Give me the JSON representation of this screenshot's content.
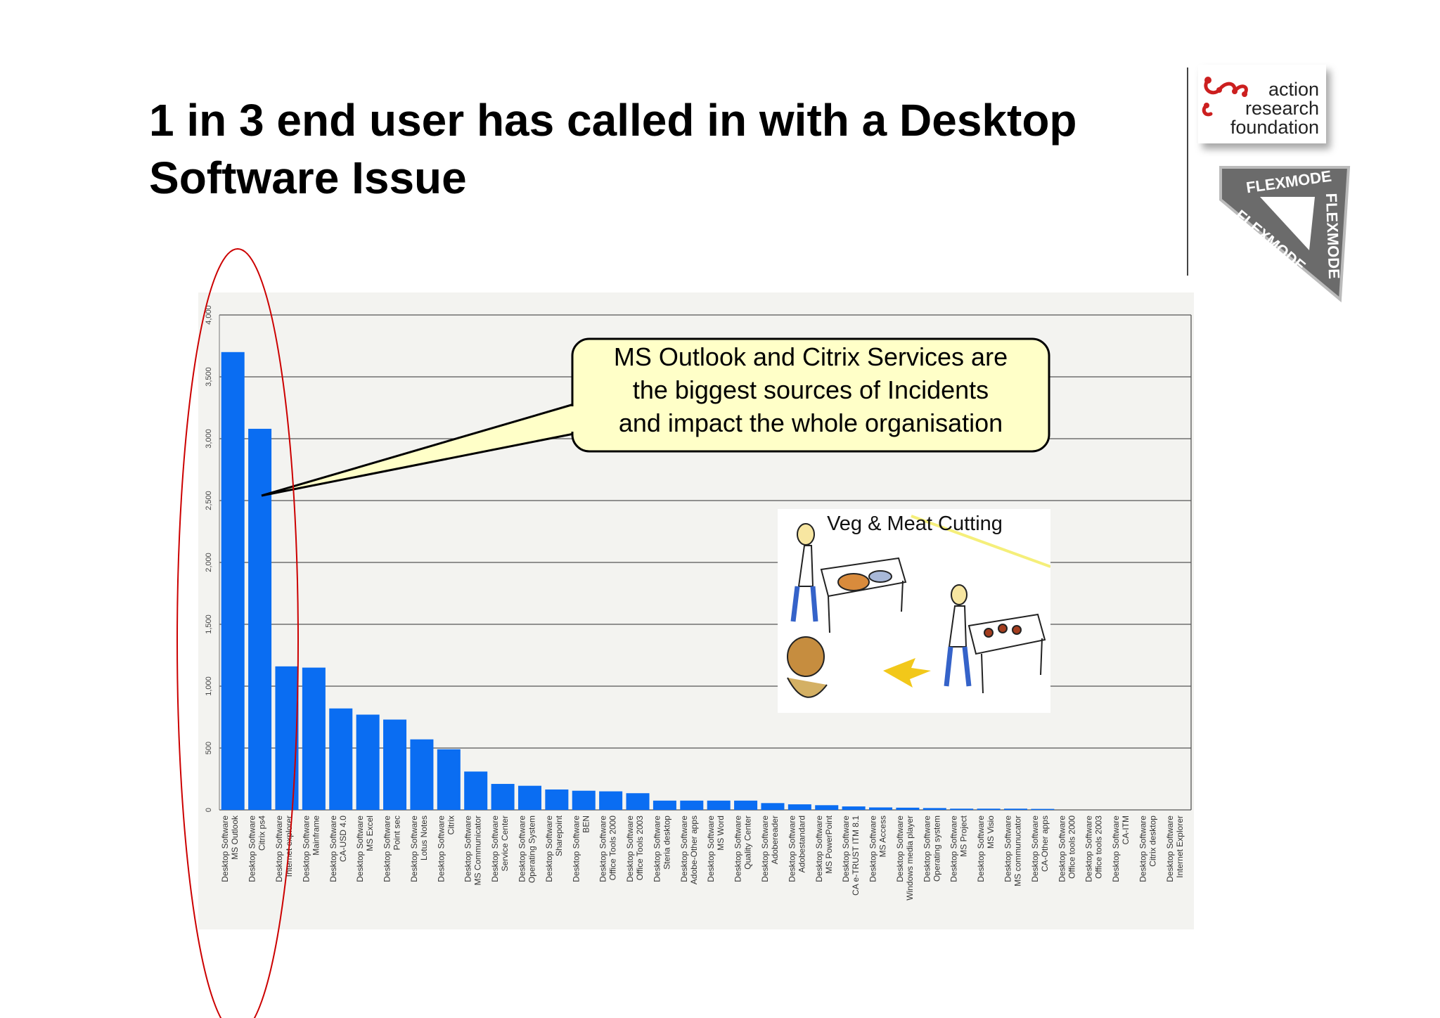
{
  "slide": {
    "title_lines": [
      "1 in 3 end user has called in with a Desktop",
      "Software Issue"
    ]
  },
  "logos": {
    "action_research": {
      "lines": [
        "action",
        "research",
        "foundation"
      ],
      "accent": "#cc1f1f"
    },
    "flexmode": {
      "text": "FLEXMODE"
    }
  },
  "callout": {
    "lines": [
      "MS Outlook and Citrix Services are",
      "the biggest sources of Incidents",
      "and impact the whole organisation"
    ],
    "fill": "#ffffc8"
  },
  "image": {
    "caption": "Veg & Meat Cutting"
  },
  "chart_data": {
    "type": "bar",
    "bar_color": "#0a6df2",
    "highlight_color": "#cc0000",
    "ylim": [
      0,
      4000
    ],
    "yticks": [
      0,
      500,
      1000,
      1500,
      2000,
      2500,
      3000,
      3500,
      4000
    ],
    "ytick_labels": [
      "0",
      "500",
      "1,000",
      "1,500",
      "2,000",
      "2,500",
      "3,000",
      "3,500",
      "4,000"
    ],
    "grid": true,
    "categories": [
      [
        "Desktop Software",
        "MS Outlook"
      ],
      [
        "Desktop Software",
        "Citrix ps4"
      ],
      [
        "Desktop Software",
        "Internet explorer"
      ],
      [
        "Desktop Software",
        "Mainframe"
      ],
      [
        "Desktop Software",
        "CA-USD 4.0"
      ],
      [
        "Desktop Software",
        "MS Excel"
      ],
      [
        "Desktop Software",
        "Point sec"
      ],
      [
        "Desktop Software",
        "Lotus Notes"
      ],
      [
        "Desktop Software",
        "Citrix"
      ],
      [
        "Desktop Software",
        "MS Communicator"
      ],
      [
        "Desktop Software",
        "Service Center"
      ],
      [
        "Desktop Software",
        "Operating System"
      ],
      [
        "Desktop Software",
        "Sharepoint"
      ],
      [
        "Desktop Software",
        "BEN"
      ],
      [
        "Desktop Software",
        "Office Tools 2000"
      ],
      [
        "Desktop Software",
        "Office Tools 2003"
      ],
      [
        "Desktop Software",
        "Steria desktop"
      ],
      [
        "Desktop Software",
        "Adobe-Other apps"
      ],
      [
        "Desktop Software",
        "MS Word"
      ],
      [
        "Desktop Software",
        "Quality Center"
      ],
      [
        "Desktop Software",
        "Adobereader"
      ],
      [
        "Desktop Software",
        "Adobestandard"
      ],
      [
        "Desktop Software",
        "MS PowerPoint"
      ],
      [
        "Desktop Software",
        "CA e-TRUST ITM 8.1"
      ],
      [
        "Desktop Software",
        "MS Access"
      ],
      [
        "Desktop Software",
        "Windows media player"
      ],
      [
        "Desktop Software",
        "Operating system"
      ],
      [
        "Desktop Software",
        "MS Project"
      ],
      [
        "Desktop Software",
        "MS Visio"
      ],
      [
        "Desktop Software",
        "MS communucator"
      ],
      [
        "Desktop Software",
        "CA-Other apps"
      ],
      [
        "Desktop Software",
        "Office tools 2000"
      ],
      [
        "Desktop Software",
        "Office tools 2003"
      ],
      [
        "Desktop Software",
        "CA-ITM"
      ],
      [
        "Desktop Software",
        "Citrix desktop"
      ],
      [
        "Desktop Software",
        "Internet Explorer"
      ]
    ],
    "values": [
      3700,
      3080,
      1160,
      1150,
      820,
      770,
      730,
      570,
      490,
      310,
      210,
      195,
      165,
      155,
      150,
      135,
      75,
      75,
      75,
      75,
      55,
      45,
      38,
      28,
      20,
      18,
      15,
      10,
      10,
      10,
      8,
      0,
      0,
      0,
      0,
      0
    ]
  }
}
